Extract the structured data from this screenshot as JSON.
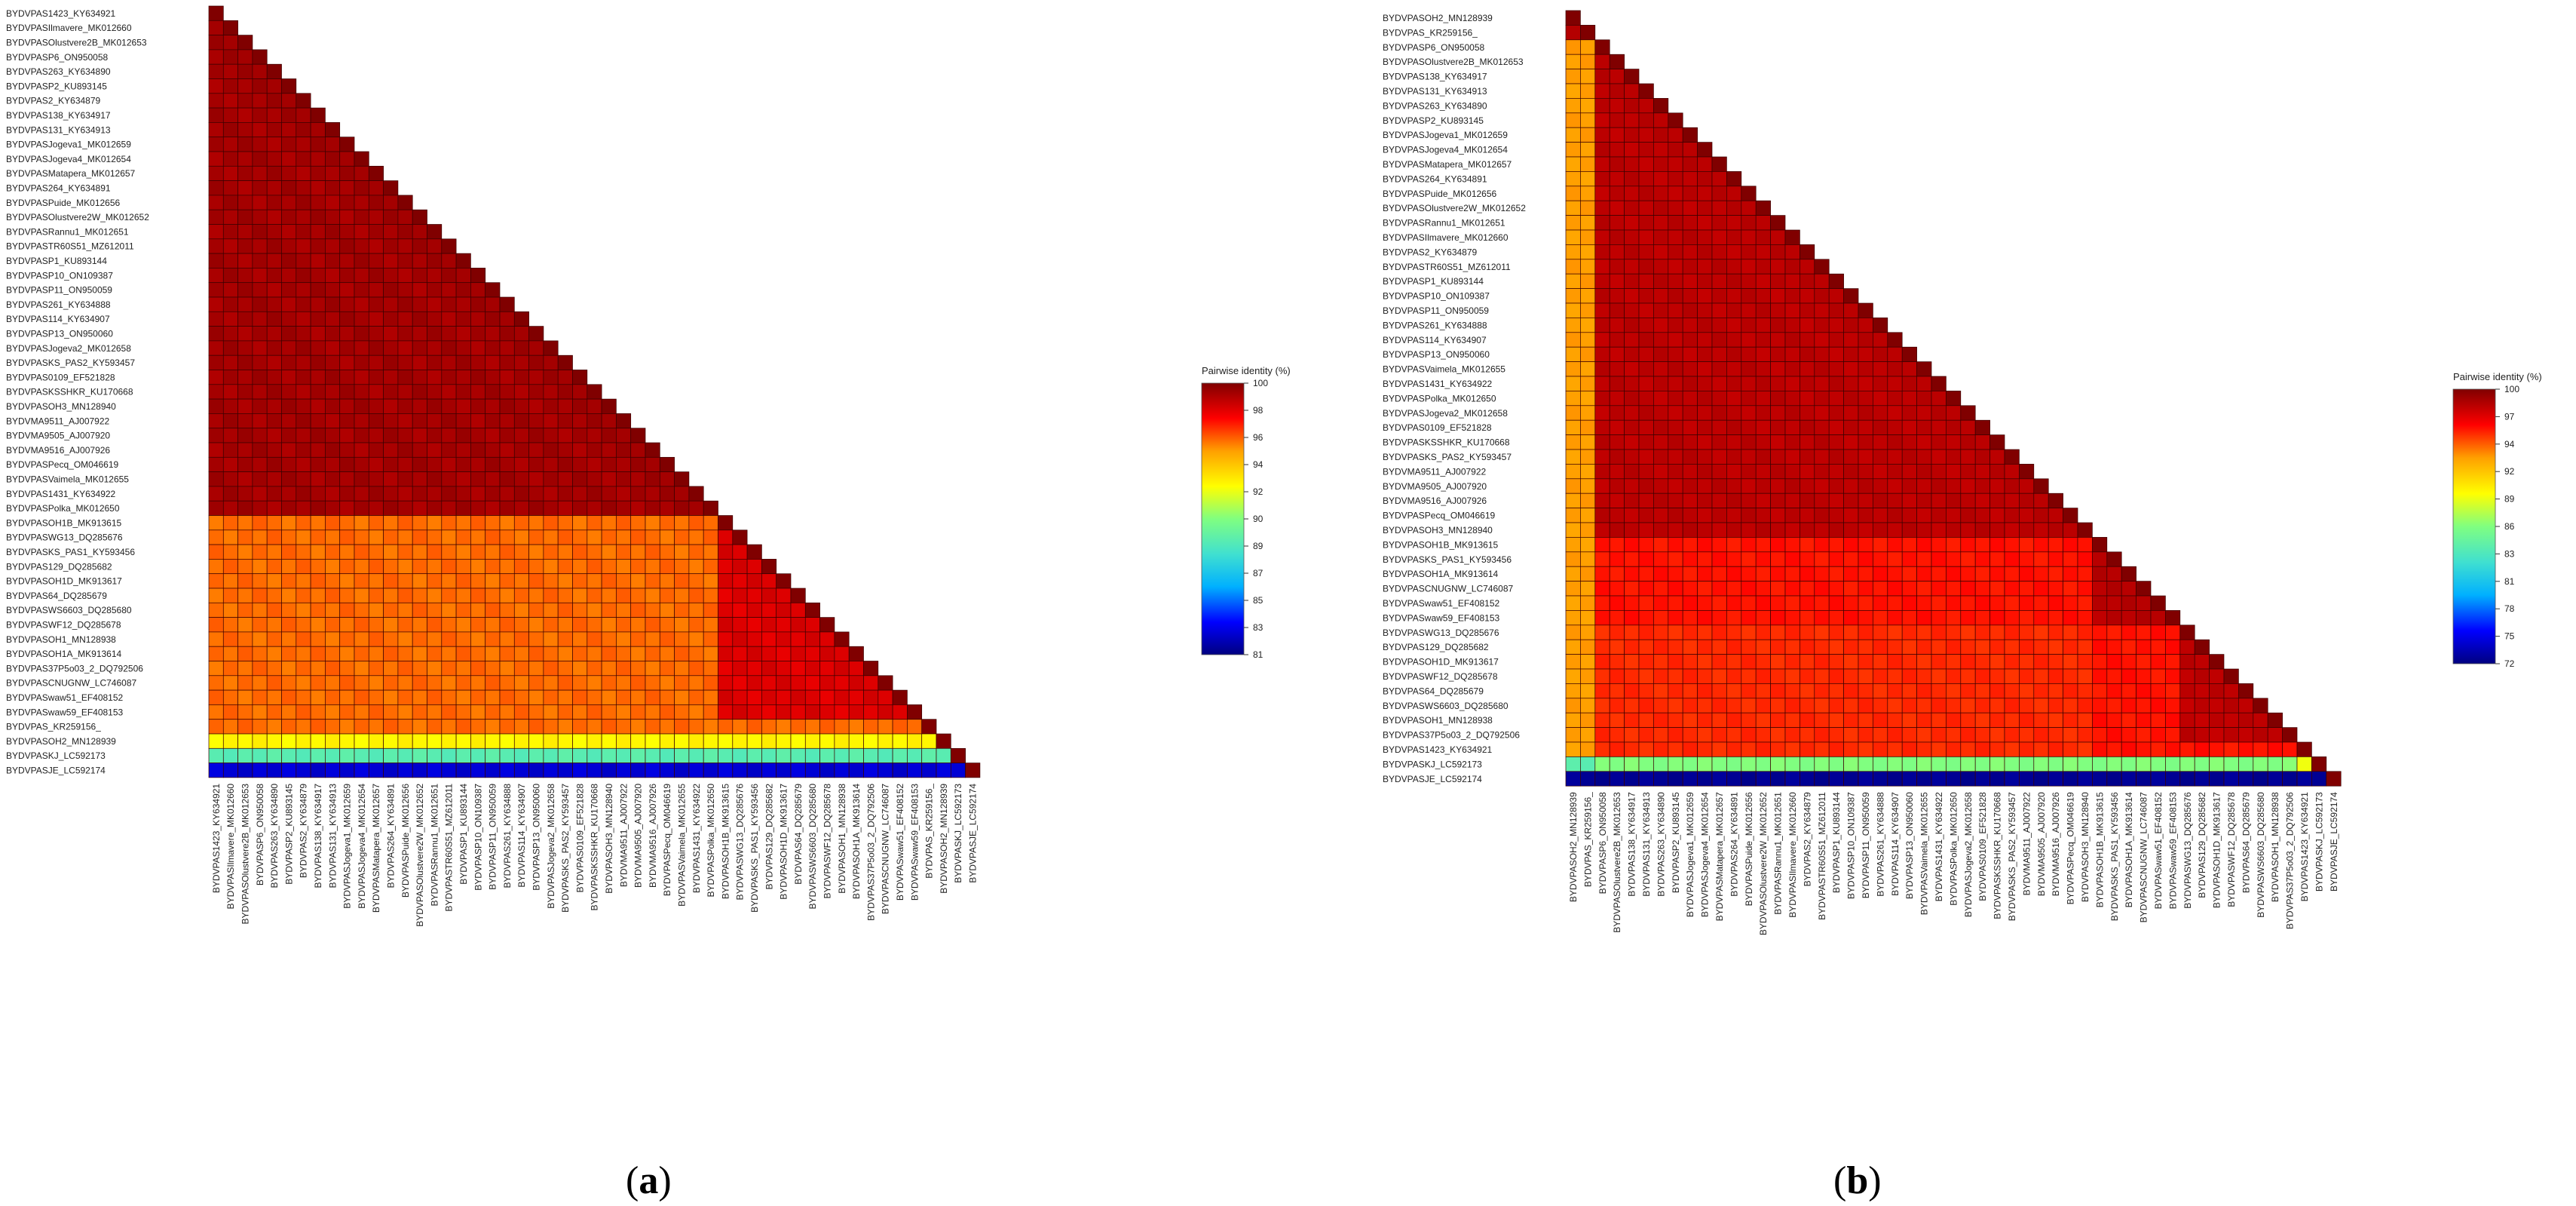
{
  "chart_data": [
    {
      "type": "heatmap",
      "panel_label": "a",
      "legend_title": "Pairwise identity (%)",
      "legend_ticks": [
        100,
        98,
        96,
        94,
        92,
        90,
        89,
        87,
        85,
        83,
        81
      ],
      "vmin": 81,
      "vmax": 100,
      "labels": [
        "BYDVPAS1423_KY634921",
        "BYDVPASIlmavere_MK012660",
        "BYDVPASOlustvere2B_MK012653",
        "BYDVPASP6_ON950058",
        "BYDVPAS263_KY634890",
        "BYDVPASP2_KU893145",
        "BYDVPAS2_KY634879",
        "BYDVPAS138_KY634917",
        "BYDVPAS131_KY634913",
        "BYDVPASJogeva1_MK012659",
        "BYDVPASJogeva4_MK012654",
        "BYDVPASMatapera_MK012657",
        "BYDVPAS264_KY634891",
        "BYDVPASPuide_MK012656",
        "BYDVPASOlustvere2W_MK012652",
        "BYDVPASRannu1_MK012651",
        "BYDVPASTR60S51_MZ612011",
        "BYDVPASP1_KU893144",
        "BYDVPASP10_ON109387",
        "BYDVPASP11_ON950059",
        "BYDVPAS261_KY634888",
        "BYDVPAS114_KY634907",
        "BYDVPASP13_ON950060",
        "BYDVPASJogeva2_MK012658",
        "BYDVPASKS_PAS2_KY593457",
        "BYDVPAS0109_EF521828",
        "BYDVPASKSSHKR_KU170668",
        "BYDVPASOH3_MN128940",
        "BYDVMA9511_AJ007922",
        "BYDVMA9505_AJ007920",
        "BYDVMA9516_AJ007926",
        "BYDVPASPecq_OM046619",
        "BYDVPASVaimela_MK012655",
        "BYDVPAS1431_KY634922",
        "BYDVPASPolka_MK012650",
        "BYDVPASOH1B_MK913615",
        "BYDVPASWG13_DQ285676",
        "BYDVPASKS_PAS1_KY593456",
        "BYDVPAS129_DQ285682",
        "BYDVPASOH1D_MK913617",
        "BYDVPAS64_DQ285679",
        "BYDVPASWS6603_DQ285680",
        "BYDVPASWF12_DQ285678",
        "BYDVPASOH1_MN128938",
        "BYDVPASOH1A_MK913614",
        "BYDVPAS37P5o03_2_DQ792506",
        "BYDVPASCNUGNW_LC746087",
        "BYDVPASwaw51_EF408152",
        "BYDVPASwaw59_EF408153",
        "BYDVPAS_KR259156_",
        "BYDVPASOH2_MN128939",
        "BYDVPASKJ_LC592173",
        "BYDVPASJE_LC592174"
      ],
      "group_sizes": [
        35,
        14,
        1,
        1,
        1,
        1
      ],
      "group_identity": [
        [
          99.3,
          96.0,
          96.0,
          93.0,
          89.0,
          82.5
        ],
        [
          96.0,
          98.2,
          96.0,
          93.0,
          89.0,
          82.5
        ],
        [
          96.0,
          96.0,
          100,
          93.0,
          89.0,
          82.5
        ],
        [
          93.0,
          93.0,
          93.0,
          100,
          89.0,
          82.5
        ],
        [
          89.0,
          89.0,
          89.0,
          89.0,
          100,
          82.5
        ],
        [
          82.5,
          82.5,
          82.5,
          82.5,
          82.5,
          100
        ]
      ]
    },
    {
      "type": "heatmap",
      "panel_label": "b",
      "legend_title": "Pairwise identity (%)",
      "legend_ticks": [
        100,
        97,
        94,
        92,
        89,
        86,
        83,
        81,
        78,
        75,
        72
      ],
      "vmin": 72,
      "vmax": 100,
      "labels": [
        "BYDVPASOH2_MN128939",
        "BYDVPAS_KR259156_",
        "BYDVPASP6_ON950058",
        "BYDVPASOlustvere2B_MK012653",
        "BYDVPAS138_KY634917",
        "BYDVPAS131_KY634913",
        "BYDVPAS263_KY634890",
        "BYDVPASP2_KU893145",
        "BYDVPASJogeva1_MK012659",
        "BYDVPASJogeva4_MK012654",
        "BYDVPASMatapera_MK012657",
        "BYDVPAS264_KY634891",
        "BYDVPASPuide_MK012656",
        "BYDVPASOlustvere2W_MK012652",
        "BYDVPASRannu1_MK012651",
        "BYDVPASIlmavere_MK012660",
        "BYDVPAS2_KY634879",
        "BYDVPASTR60S51_MZ612011",
        "BYDVPASP1_KU893144",
        "BYDVPASP10_ON109387",
        "BYDVPASP11_ON950059",
        "BYDVPAS261_KY634888",
        "BYDVPAS114_KY634907",
        "BYDVPASP13_ON950060",
        "BYDVPASVaimela_MK012655",
        "BYDVPAS1431_KY634922",
        "BYDVPASPolka_MK012650",
        "BYDVPASJogeva2_MK012658",
        "BYDVPAS0109_EF521828",
        "BYDVPASKSSHKR_KU170668",
        "BYDVPASKS_PAS2_KY593457",
        "BYDVMA9511_AJ007922",
        "BYDVMA9505_AJ007920",
        "BYDVMA9516_AJ007926",
        "BYDVPASPecq_OM046619",
        "BYDVPASOH3_MN128940",
        "BYDVPASOH1B_MK913615",
        "BYDVPASKS_PAS1_KY593456",
        "BYDVPASOH1A_MK913614",
        "BYDVPASCNUGNW_LC746087",
        "BYDVPASwaw51_EF408152",
        "BYDVPASwaw59_EF408153",
        "BYDVPASWG13_DQ285676",
        "BYDVPAS129_DQ285682",
        "BYDVPASOH1D_MK913617",
        "BYDVPASWF12_DQ285678",
        "BYDVPAS64_DQ285679",
        "BYDVPASWS6603_DQ285680",
        "BYDVPASOH1_MN128938",
        "BYDVPAS37P5o03_2_DQ792506",
        "BYDVPAS1423_KY634921",
        "BYDVPASKJ_LC592173",
        "BYDVPASJE_LC592174"
      ],
      "group_sizes": [
        2,
        34,
        6,
        8,
        1,
        1,
        1
      ],
      "group_identity": [
        [
          98.5,
          93.0,
          93.0,
          93.0,
          93.0,
          84.0,
          72.5
        ],
        [
          93.0,
          98.3,
          96.0,
          95.5,
          95.5,
          86.0,
          72.5
        ],
        [
          93.0,
          96.0,
          98.4,
          96.0,
          96.0,
          86.0,
          72.5
        ],
        [
          93.0,
          95.5,
          96.0,
          98.2,
          96.0,
          86.0,
          72.5
        ],
        [
          93.0,
          95.5,
          96.0,
          96.0,
          100,
          89.0,
          72.5
        ],
        [
          84.0,
          86.0,
          86.0,
          86.0,
          89.0,
          100,
          72.5
        ],
        [
          72.5,
          72.5,
          72.5,
          72.5,
          72.5,
          72.5,
          100
        ]
      ]
    }
  ]
}
